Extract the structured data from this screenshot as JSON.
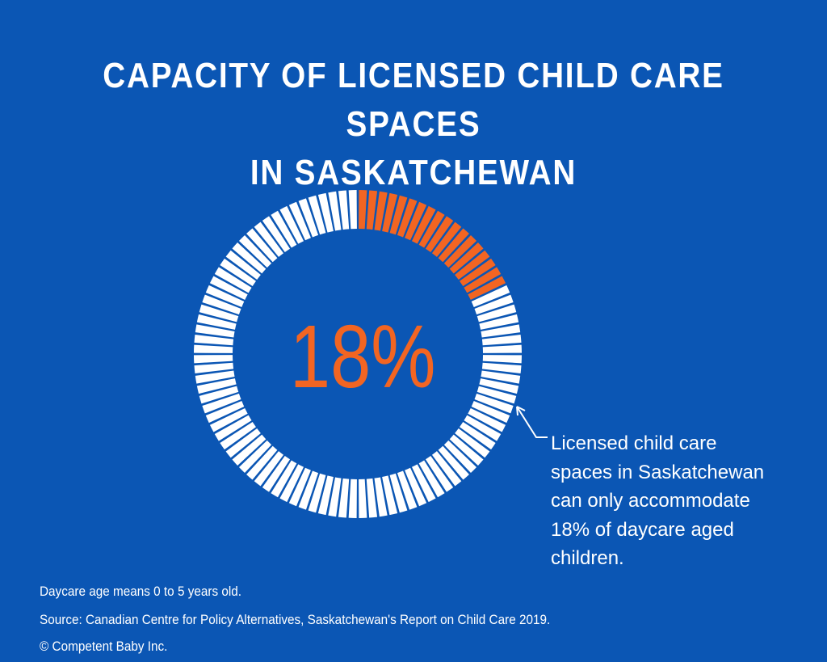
{
  "title": {
    "line1": "CAPACITY OF LICENSED CHILD CARE SPACES",
    "line2": "IN SASKATCHEWAN"
  },
  "colors": {
    "background": "#0b56b4",
    "accent": "#f26522",
    "segment_default": "#ffffff"
  },
  "chart_data": {
    "type": "pie",
    "variant": "segmented-donut",
    "total_segments": 100,
    "value_percent": 18,
    "center_label": "18%",
    "title": "CAPACITY OF LICENSED CHILD CARE SPACES IN SASKATCHEWAN",
    "annotation": "Licensed child care spaces in Saskatchewan can only accommodate 18% of daycare aged children."
  },
  "callout": {
    "lines": [
      "Licensed child care",
      "spaces in Saskatchewan",
      "can only accommodate",
      "18% of daycare aged",
      "children."
    ]
  },
  "footnotes": {
    "age": "Daycare age means 0 to 5 years old.",
    "source": "Source: Canadian Centre for Policy Alternatives, Saskatchewan's Report on Child Care 2019.",
    "copyright": "© Competent Baby Inc."
  }
}
